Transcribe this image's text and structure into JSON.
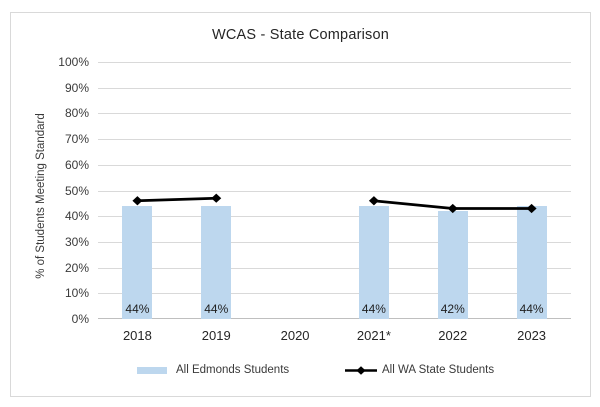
{
  "window": {
    "background": "#ffffff",
    "border_color": "#d9d9d9"
  },
  "chart_data": {
    "type": "combo",
    "title": "WCAS - State Comparison",
    "ylabel": "% of Students Meeting Standard",
    "xlabel": "",
    "ylim": [
      0,
      100
    ],
    "grid": true,
    "legend_position": "bottom",
    "categories": [
      "2018",
      "2019",
      "2020",
      "2021*",
      "2022",
      "2023"
    ],
    "yticks": [
      {
        "value": 0,
        "label": "0%"
      },
      {
        "value": 10,
        "label": "10%"
      },
      {
        "value": 20,
        "label": "20%"
      },
      {
        "value": 30,
        "label": "30%"
      },
      {
        "value": 40,
        "label": "40%"
      },
      {
        "value": 50,
        "label": "50%"
      },
      {
        "value": 60,
        "label": "60%"
      },
      {
        "value": 70,
        "label": "70%"
      },
      {
        "value": 80,
        "label": "80%"
      },
      {
        "value": 90,
        "label": "90%"
      },
      {
        "value": 100,
        "label": "100%"
      }
    ],
    "series": [
      {
        "name": "All Edmonds Students",
        "type": "bar",
        "color": "#bdd7ee",
        "values": [
          44,
          44,
          null,
          44,
          42,
          44
        ],
        "data_labels": [
          "44%",
          "44%",
          null,
          "44%",
          "42%",
          "44%"
        ]
      },
      {
        "name": "All WA State Students",
        "type": "line",
        "color": "#000000",
        "marker": "diamond",
        "values": [
          46,
          47,
          null,
          46,
          43,
          43
        ]
      }
    ]
  },
  "colors": {
    "gridline": "#d9d9d9",
    "axis_line": "#bfbfbf",
    "bar_fill": "#bdd7ee",
    "line_stroke": "#000000",
    "text": "#262626"
  }
}
